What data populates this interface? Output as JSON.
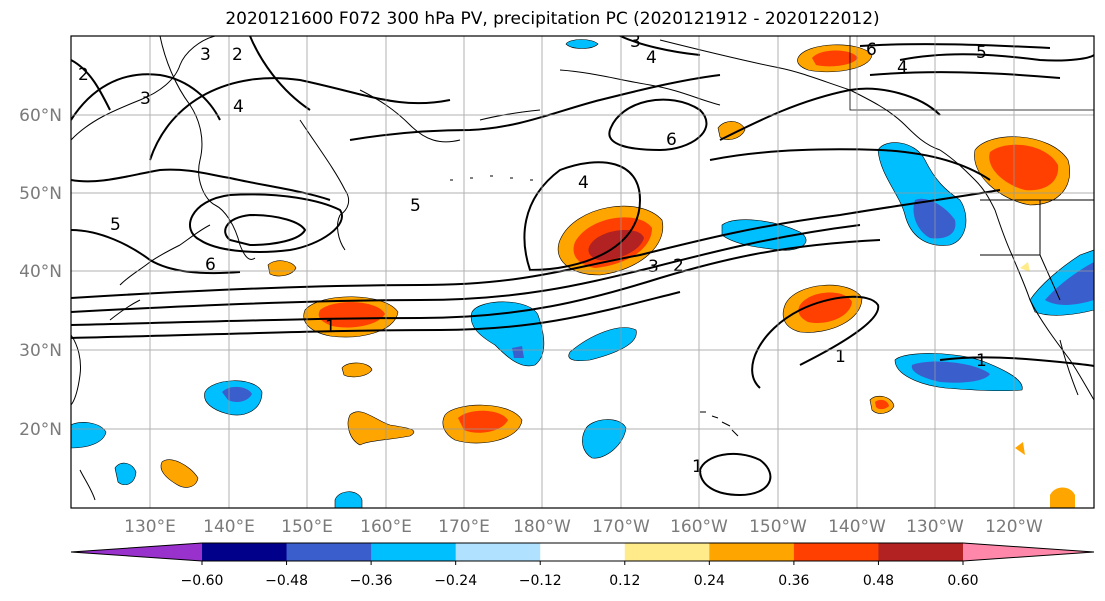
{
  "title": "2020121600 F072 300 hPa PV, precipitation PC (2020121912 - 2020122012)",
  "axes": {
    "lat_labels": [
      "60°N",
      "50°N",
      "40°N",
      "30°N",
      "20°N"
    ],
    "lon_labels": [
      "130°E",
      "140°E",
      "150°E",
      "160°E",
      "170°E",
      "180°W",
      "170°W",
      "160°W",
      "150°W",
      "140°W",
      "130°W",
      "120°W"
    ]
  },
  "contour_labels": [
    "1",
    "2",
    "3",
    "4",
    "5",
    "6"
  ],
  "colorbar": {
    "colors": [
      "#9932cc",
      "#00008b",
      "#3a5fcd",
      "#00bfff",
      "#b0e2ff",
      "#ffffff",
      "#ffeb8a",
      "#ffa500",
      "#ff4000",
      "#b22222",
      "#ff88aa"
    ],
    "tick_labels": [
      "−0.60",
      "−0.48",
      "−0.36",
      "−0.24",
      "−0.12",
      "0.12",
      "0.24",
      "0.36",
      "0.48",
      "0.60"
    ]
  }
}
